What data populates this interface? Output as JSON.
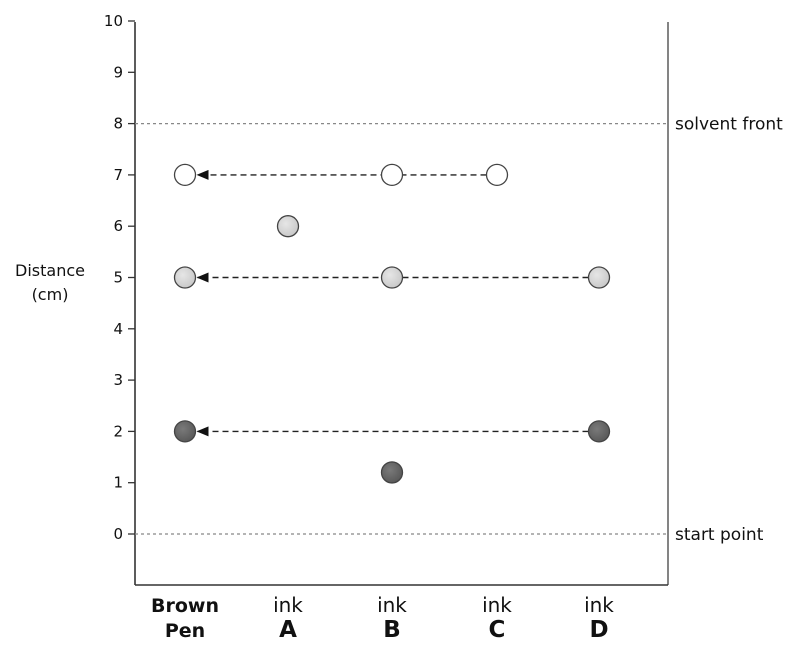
{
  "chart_data": {
    "type": "scatter",
    "title": "",
    "ylabel_lines": [
      "Distance",
      "(cm)"
    ],
    "ylim": [
      0,
      10
    ],
    "yticks": [
      0,
      1,
      2,
      3,
      4,
      5,
      6,
      7,
      8,
      9,
      10
    ],
    "grid": false,
    "categories": [
      {
        "lines": [
          "Brown",
          "Pen"
        ],
        "style": "bold"
      },
      {
        "lines": [
          "ink",
          "A"
        ],
        "style": "ink"
      },
      {
        "lines": [
          "ink",
          "B"
        ],
        "style": "ink"
      },
      {
        "lines": [
          "ink",
          "C"
        ],
        "style": "ink"
      },
      {
        "lines": [
          "ink",
          "D"
        ],
        "style": "ink"
      }
    ],
    "reference_lines": [
      {
        "y": 8,
        "label": "solvent front"
      },
      {
        "y": 0,
        "label": "start point"
      }
    ],
    "spots": [
      {
        "category": 0,
        "y": 7,
        "shade": "white"
      },
      {
        "category": 0,
        "y": 5,
        "shade": "light-grey"
      },
      {
        "category": 0,
        "y": 2,
        "shade": "dark-grey"
      },
      {
        "category": 1,
        "y": 6,
        "shade": "light-grey"
      },
      {
        "category": 2,
        "y": 7,
        "shade": "white"
      },
      {
        "category": 2,
        "y": 5,
        "shade": "light-grey"
      },
      {
        "category": 2,
        "y": 1.2,
        "shade": "dark-grey"
      },
      {
        "category": 3,
        "y": 7,
        "shade": "white"
      },
      {
        "category": 4,
        "y": 5,
        "shade": "light-grey"
      },
      {
        "category": 4,
        "y": 2,
        "shade": "dark-grey"
      }
    ],
    "arrows": [
      {
        "y": 7,
        "from_category": 3,
        "to_category": 0
      },
      {
        "y": 5,
        "from_category": 4,
        "to_category": 0
      },
      {
        "y": 2,
        "from_category": 4,
        "to_category": 0
      }
    ],
    "colors": {
      "white": "#ffffff",
      "light-grey": "#c8c8c8",
      "dark-grey": "#585858",
      "outline": "#444444",
      "axis": "#333333",
      "ref_line": "#888888"
    }
  }
}
